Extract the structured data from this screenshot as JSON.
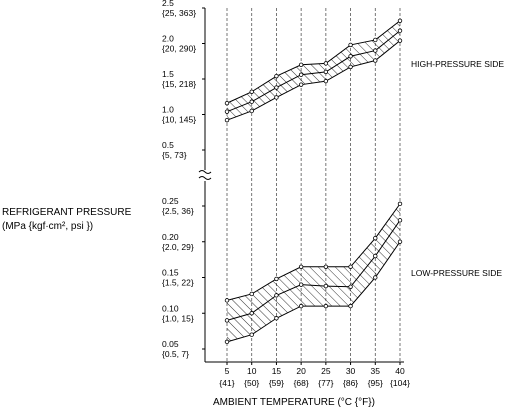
{
  "chart_data": {
    "type": "area",
    "ylabel": "REFRIGERANT PRESSURE",
    "ylabel_units": "(MPa {kgf·cm², psi })",
    "xlabel": "AMBIENT TEMPERATURE  (°C {°F})",
    "x": [
      5,
      10,
      15,
      20,
      25,
      30,
      35,
      40
    ],
    "x_tick_labels": [
      {
        "c": "5",
        "f": "{41}"
      },
      {
        "c": "10",
        "f": "{50}"
      },
      {
        "c": "15",
        "f": "{59}"
      },
      {
        "c": "20",
        "f": "{68}"
      },
      {
        "c": "25",
        "f": "{77}"
      },
      {
        "c": "30",
        "f": "{86}"
      },
      {
        "c": "35",
        "f": "{95}"
      },
      {
        "c": "40",
        "f": "{104}"
      }
    ],
    "grid": "vertical dashed",
    "high_pressure": {
      "label": "HIGH-PRESSURE SIDE",
      "ylim": [
        0.5,
        2.5
      ],
      "ticks": [
        {
          "value": 2.5,
          "label": "2.5",
          "sub": "{25, 363}"
        },
        {
          "value": 2.0,
          "label": "2.0",
          "sub": "{20, 290}"
        },
        {
          "value": 1.5,
          "label": "1.5",
          "sub": "{15, 218}"
        },
        {
          "value": 1.0,
          "label": "1.0",
          "sub": "{10, 145}"
        },
        {
          "value": 0.5,
          "label": "0.5",
          "sub": "{5, 73}"
        }
      ],
      "series": [
        {
          "values": [
            1.16,
            1.32,
            1.54,
            1.7,
            1.72,
            1.98,
            2.05,
            2.32
          ]
        },
        {
          "values": [
            1.04,
            1.18,
            1.38,
            1.56,
            1.6,
            1.82,
            1.9,
            2.18
          ]
        },
        {
          "values": [
            0.92,
            1.05,
            1.24,
            1.42,
            1.47,
            1.67,
            1.76,
            2.04
          ]
        }
      ]
    },
    "low_pressure": {
      "label": "LOW-PRESSURE SIDE",
      "ylim": [
        0.05,
        0.25
      ],
      "ticks": [
        {
          "value": 0.25,
          "label": "0.25",
          "sub": "{2.5, 36}"
        },
        {
          "value": 0.2,
          "label": "0.20",
          "sub": "{2.0, 29}"
        },
        {
          "value": 0.15,
          "label": "0.15",
          "sub": "{1.5, 22}"
        },
        {
          "value": 0.1,
          "label": "0.10",
          "sub": "{1.0, 15}"
        },
        {
          "value": 0.05,
          "label": "0.05",
          "sub": "{0.5, 7}"
        }
      ],
      "series": [
        {
          "values": [
            0.118,
            0.127,
            0.148,
            0.165,
            0.165,
            0.165,
            0.205,
            0.253
          ]
        },
        {
          "values": [
            0.09,
            0.1,
            0.125,
            0.14,
            0.138,
            0.137,
            0.18,
            0.23
          ]
        },
        {
          "values": [
            0.06,
            0.07,
            0.093,
            0.11,
            0.11,
            0.11,
            0.15,
            0.2
          ]
        }
      ]
    }
  }
}
